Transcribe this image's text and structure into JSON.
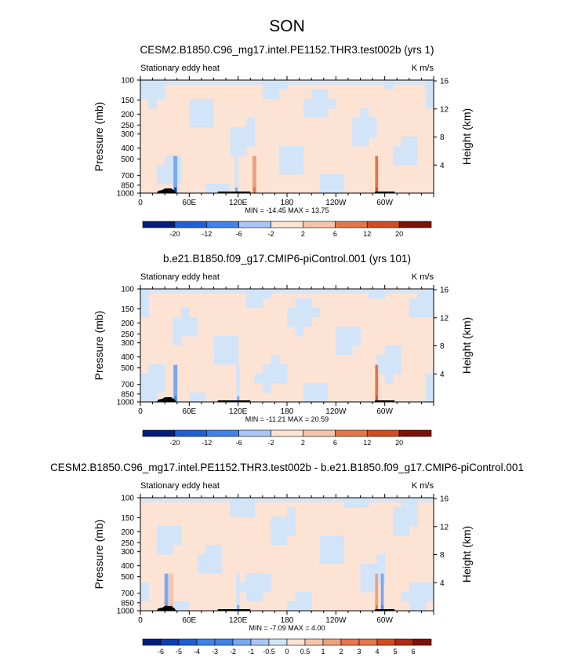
{
  "figure": {
    "title": "SON"
  },
  "chart_data": [
    {
      "type": "heatmap",
      "title": "CESM2.B1850.C96_mg17.intel.PE1152.THR3.test002b (yrs 1)",
      "subtitle": "Stationary eddy heat",
      "units": "K m/s",
      "xlabel": "",
      "ylabel": "Pressure (mb)",
      "ylabel_right": "Height (km)",
      "xlim": [
        0,
        360
      ],
      "x_ticks": [
        "0",
        "60E",
        "120E",
        "180",
        "120W",
        "60W"
      ],
      "y_ticks": [
        "100",
        "150",
        "200",
        "250",
        "300",
        "400",
        "500",
        "700",
        "850",
        "1000"
      ],
      "y_ticks_right": [
        "16",
        "12",
        "8",
        "4"
      ],
      "min_label": "MIN = -14.45",
      "max_label": "MAX =  13.75",
      "colorbar_labels": [
        "-20",
        "-12",
        "-6",
        "-2",
        "2",
        "6",
        "12",
        "20"
      ],
      "features": [
        {
          "lon": 43,
          "strength": -5,
          "half_width": 2
        },
        {
          "lon": 118,
          "strength": -2,
          "half_width": 2
        },
        {
          "lon": 140,
          "strength": 3,
          "half_width": 2
        },
        {
          "lon": 290,
          "strength": 6,
          "half_width": 1.5
        }
      ]
    },
    {
      "type": "heatmap",
      "title": "b.e21.B1850.f09_g17.CMIP6-piControl.001 (yrs 101)",
      "subtitle": "Stationary eddy heat",
      "units": "K m/s",
      "xlabel": "",
      "ylabel": "Pressure (mb)",
      "ylabel_right": "Height (km)",
      "xlim": [
        0,
        360
      ],
      "x_ticks": [
        "0",
        "60E",
        "120E",
        "180",
        "120W",
        "60W"
      ],
      "y_ticks": [
        "100",
        "150",
        "200",
        "250",
        "300",
        "400",
        "500",
        "700",
        "850",
        "1000"
      ],
      "y_ticks_right": [
        "16",
        "12",
        "8",
        "4"
      ],
      "min_label": "MIN = -11.21",
      "max_label": "MAX =  20.59",
      "colorbar_labels": [
        "-20",
        "-12",
        "-6",
        "-2",
        "2",
        "6",
        "12",
        "20"
      ],
      "features": [
        {
          "lon": 43,
          "strength": -4,
          "half_width": 2
        },
        {
          "lon": 120,
          "strength": -2,
          "half_width": 2
        },
        {
          "lon": 290,
          "strength": 8,
          "half_width": 1.5
        }
      ]
    },
    {
      "type": "heatmap",
      "title": "CESM2.B1850.C96_mg17.intel.PE1152.THR3.test002b - b.e21.B1850.f09_g17.CMIP6-piControl.001",
      "subtitle": "Stationary eddy heat",
      "units": "K m/s",
      "xlabel": "",
      "ylabel": "Pressure (mb)",
      "ylabel_right": "Height (km)",
      "xlim": [
        0,
        360
      ],
      "x_ticks": [
        "0",
        "60E",
        "120E",
        "180",
        "120W",
        "60W"
      ],
      "y_ticks": [
        "100",
        "150",
        "200",
        "250",
        "300",
        "400",
        "500",
        "700",
        "850",
        "1000"
      ],
      "y_ticks_right": [
        "16",
        "12",
        "8",
        "4"
      ],
      "min_label": "MIN =  -7.09",
      "max_label": "MAX =   4.00",
      "colorbar_labels": [
        "-6",
        "-5",
        "-4",
        "-3",
        "-2",
        "-1",
        "-0.5",
        "0",
        "0.5",
        "1",
        "2",
        "3",
        "4",
        "5",
        "6"
      ],
      "features": [
        {
          "lon": 32,
          "strength": -3,
          "half_width": 2
        },
        {
          "lon": 38,
          "strength": 2,
          "half_width": 2
        },
        {
          "lon": 120,
          "strength": -2,
          "half_width": 2
        },
        {
          "lon": 290,
          "strength": 4,
          "half_width": 1.5
        },
        {
          "lon": 297,
          "strength": -3,
          "half_width": 1.5
        }
      ]
    }
  ],
  "colors": {
    "palette": [
      "#051d7a",
      "#0c3fb0",
      "#1f5fd6",
      "#3f82ea",
      "#7aa8f0",
      "#aac6f4",
      "#d2e4f8",
      "#fde3d4",
      "#f5c4aa",
      "#eda17c",
      "#e47648",
      "#d24c22",
      "#ad2c12",
      "#7c1208"
    ]
  }
}
